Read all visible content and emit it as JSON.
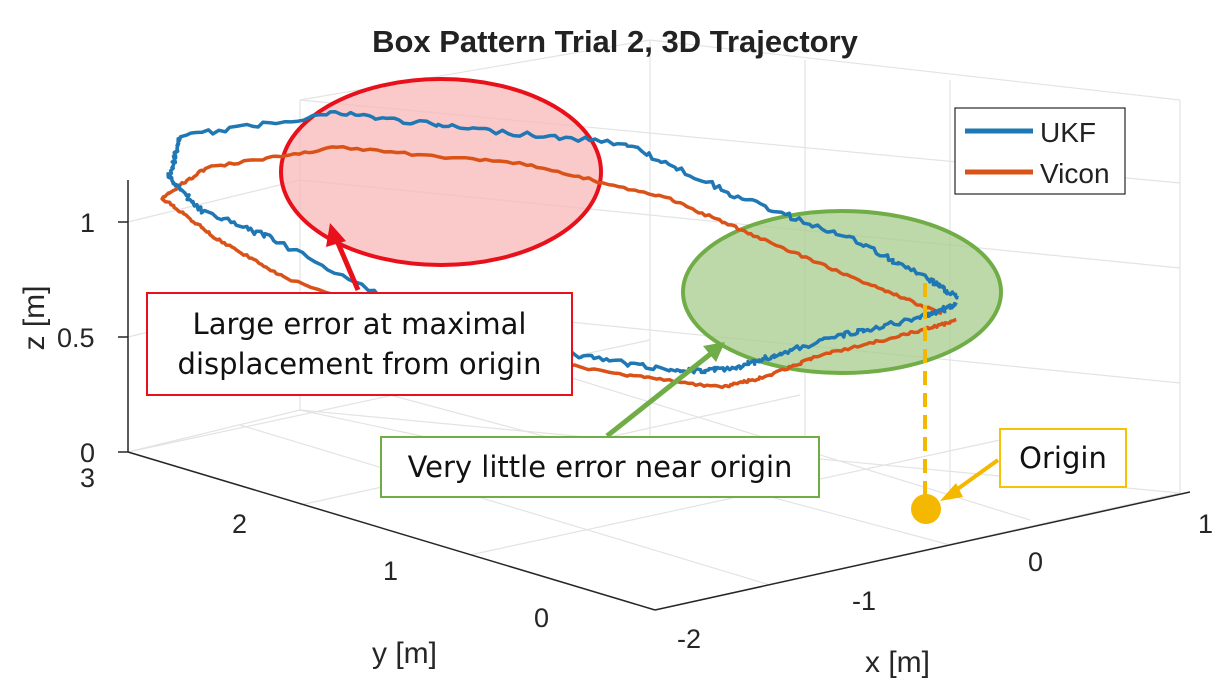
{
  "chart_data": {
    "type": "line",
    "title": "Box Pattern Trial 2, 3D Trajectory",
    "xlabel": "x [m]",
    "ylabel": "y [m]",
    "zlabel": "z [m]",
    "x_ticks": [
      "-2",
      "-1",
      "0",
      "1"
    ],
    "y_ticks": [
      "0",
      "1",
      "2",
      "3"
    ],
    "z_ticks": [
      "0",
      "0.5",
      "1"
    ],
    "xlim": [
      -2,
      1
    ],
    "ylim": [
      0,
      3
    ],
    "zlim": [
      0,
      1.2
    ],
    "grid": true,
    "legend_position": "top-right",
    "series": [
      {
        "name": "UKF",
        "color": "#1f77b4",
        "points": [
          [
            0.0,
            0.0,
            0.85
          ],
          [
            -0.2,
            0.0,
            0.83
          ],
          [
            -0.6,
            0.02,
            0.82
          ],
          [
            -1.0,
            0.05,
            0.79
          ],
          [
            -1.2,
            0.1,
            0.75
          ],
          [
            -1.35,
            0.3,
            0.73
          ],
          [
            -1.5,
            0.8,
            0.72
          ],
          [
            -1.65,
            1.4,
            0.7
          ],
          [
            -1.9,
            2.3,
            0.98
          ],
          [
            -2.0,
            2.7,
            1.05
          ],
          [
            -2.0,
            2.9,
            1.15
          ],
          [
            -1.85,
            3.0,
            1.28
          ],
          [
            -1.0,
            2.95,
            1.25
          ],
          [
            -0.5,
            2.7,
            1.15
          ],
          [
            0.0,
            2.2,
            1.1
          ],
          [
            0.05,
            1.5,
            1.0
          ],
          [
            0.1,
            0.8,
            0.95
          ],
          [
            0.1,
            0.3,
            0.88
          ],
          [
            0.05,
            0.05,
            0.86
          ]
        ]
      },
      {
        "name": "Vicon",
        "color": "#d95319",
        "points": [
          [
            0.0,
            0.0,
            0.78
          ],
          [
            -0.3,
            0.0,
            0.77
          ],
          [
            -0.8,
            0.0,
            0.76
          ],
          [
            -1.1,
            0.0,
            0.72
          ],
          [
            -1.3,
            0.05,
            0.7
          ],
          [
            -1.5,
            0.5,
            0.7
          ],
          [
            -1.7,
            1.2,
            0.7
          ],
          [
            -1.95,
            2.2,
            0.85
          ],
          [
            -2.0,
            2.6,
            0.95
          ],
          [
            -2.0,
            2.95,
            1.05
          ],
          [
            -1.7,
            3.0,
            1.12
          ],
          [
            -1.0,
            2.95,
            1.1
          ],
          [
            -0.3,
            2.5,
            1.0
          ],
          [
            0.0,
            1.9,
            0.92
          ],
          [
            0.0,
            1.3,
            0.87
          ],
          [
            0.0,
            0.6,
            0.82
          ],
          [
            0.0,
            0.1,
            0.79
          ]
        ]
      }
    ],
    "annotations": {
      "red": "Large error at maximal displacement from origin",
      "green": "Very little error near origin",
      "origin": "Origin"
    }
  },
  "callouts": {
    "red_line1": "Large error at maximal",
    "red_line2": "displacement from origin",
    "green": "Very little error near origin",
    "origin": "Origin"
  },
  "colors": {
    "red_fill": "#f8b7b7",
    "red_stroke": "#e8101a",
    "green_fill": "#a8cc8c",
    "green_stroke": "#70ad47",
    "yellow": "#f5b800"
  }
}
